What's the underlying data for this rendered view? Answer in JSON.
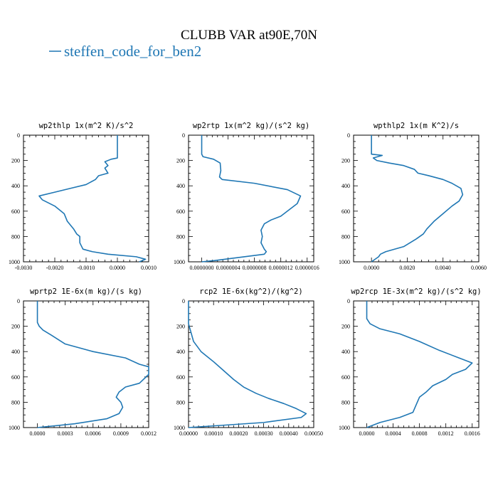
{
  "title": "CLUBB VAR at90E,70N",
  "legend": {
    "label": "steffen_code_for_ben2",
    "color": "#1f77b4"
  },
  "chart_data": [
    {
      "type": "line",
      "title": "wp2thlp  1x(m^2 K)/s^2",
      "xlim": [
        -0.003,
        0.001
      ],
      "ylim": [
        0,
        1000
      ],
      "y_inverted": true,
      "xticks": [
        -0.003,
        -0.002,
        -0.001,
        0.0,
        0.001
      ],
      "xtick_labels": [
        "-0.0030",
        "-0.0020",
        "-0.0010",
        "0.0000",
        "0.0010"
      ],
      "yticks": [
        0,
        200,
        400,
        600,
        800,
        1000
      ],
      "ytick_labels": [
        "0",
        "200",
        "400",
        "600",
        "800",
        "1000"
      ],
      "series": [
        {
          "color": "#1f77b4",
          "x": [
            0.0,
            0.0,
            -0.0002,
            -0.0004,
            -0.0003,
            -0.0004,
            -0.0003,
            -0.0006,
            -0.0007,
            -0.001,
            -0.0015,
            -0.002,
            -0.0025,
            -0.0024,
            -0.002,
            -0.0017,
            -0.0016,
            -0.0014,
            -0.0013,
            -0.0012,
            -0.0012,
            -0.0011,
            -0.0008,
            -0.0003,
            0.0006,
            0.0009,
            0.0007
          ],
          "y": [
            0,
            180,
            190,
            210,
            240,
            260,
            300,
            320,
            350,
            390,
            420,
            450,
            480,
            510,
            560,
            620,
            680,
            740,
            780,
            800,
            850,
            900,
            920,
            940,
            960,
            980,
            1000
          ]
        }
      ]
    },
    {
      "type": "line",
      "title": "wp2rtp  1x(m^2 kg)/(s^2 kg)",
      "xlim": [
        -2e-07,
        1.7e-06
      ],
      "ylim": [
        0,
        1000
      ],
      "y_inverted": true,
      "xticks": [
        0.0,
        4e-07,
        8e-07,
        1.2e-06,
        1.6e-06
      ],
      "xtick_labels": [
        "0.0000000",
        "0.0000004",
        "0.0000008",
        "0.0000012",
        "0.0000016"
      ],
      "yticks": [
        0,
        200,
        400,
        600,
        800,
        1000
      ],
      "ytick_labels": [
        "0",
        "200",
        "400",
        "600",
        "800",
        "1000"
      ],
      "series": [
        {
          "color": "#1f77b4",
          "x": [
            0.0,
            0.0,
            2e-08,
            1.8e-07,
            2.8e-07,
            2.9e-07,
            2.7e-07,
            3.1e-07,
            8e-07,
            1.3e-06,
            1.5e-06,
            1.45e-06,
            1.3e-06,
            1.2e-06,
            1.05e-06,
            9.5e-07,
            9e-07,
            9.2e-07,
            9e-07,
            9.5e-07,
            9.8e-07,
            9.5e-07,
            2e-07,
            0.0
          ],
          "y": [
            0,
            150,
            170,
            190,
            220,
            280,
            330,
            350,
            380,
            430,
            480,
            540,
            600,
            640,
            670,
            700,
            750,
            800,
            850,
            900,
            920,
            940,
            990,
            1000
          ]
        }
      ]
    },
    {
      "type": "line",
      "title": "wpthlp2  1x(m K^2)/s",
      "xlim": [
        -0.001,
        0.006
      ],
      "ylim": [
        0,
        1000
      ],
      "y_inverted": true,
      "xticks": [
        0.0,
        0.002,
        0.004,
        0.006
      ],
      "xtick_labels": [
        "0.0000",
        "0.0020",
        "0.0040",
        "0.0060"
      ],
      "yticks": [
        0,
        200,
        400,
        600,
        800,
        1000
      ],
      "ytick_labels": [
        "0",
        "200",
        "400",
        "600",
        "800",
        "1000"
      ],
      "series": [
        {
          "color": "#1f77b4",
          "x": [
            0.0,
            0.0,
            0.0006,
            0.0001,
            0.0003,
            0.001,
            0.0018,
            0.0024,
            0.0026,
            0.0032,
            0.004,
            0.0045,
            0.005,
            0.0051,
            0.0049,
            0.0045,
            0.004,
            0.0035,
            0.0031,
            0.0029,
            0.0025,
            0.0018,
            0.0008,
            0.0005,
            0.0004,
            0.0
          ],
          "y": [
            0,
            150,
            160,
            180,
            200,
            220,
            240,
            270,
            300,
            320,
            350,
            380,
            420,
            470,
            520,
            560,
            620,
            680,
            740,
            780,
            820,
            880,
            920,
            940,
            960,
            1000
          ]
        }
      ]
    },
    {
      "type": "line",
      "title": "wprtp2  1E-6x(m kg)/(s kg)",
      "xlim": [
        -0.00015,
        0.0012
      ],
      "ylim": [
        0,
        1000
      ],
      "y_inverted": true,
      "xticks": [
        0.0,
        0.0003,
        0.0006,
        0.0009,
        0.0012
      ],
      "xtick_labels": [
        "0.0000",
        "0.0003",
        "0.0006",
        "0.0009",
        "0.0012"
      ],
      "yticks": [
        0,
        200,
        400,
        600,
        800,
        1000
      ],
      "ytick_labels": [
        "0",
        "200",
        "400",
        "600",
        "800",
        "1000"
      ],
      "series": [
        {
          "color": "#1f77b4",
          "x": [
            0.0,
            0.0,
            2e-05,
            6e-05,
            0.00015,
            0.0003,
            0.0006,
            0.00095,
            0.0011,
            0.0012,
            0.0012,
            0.0011,
            0.00095,
            0.00088,
            0.00085,
            0.0009,
            0.00092,
            0.00088,
            0.00075,
            0.0004,
            0.0
          ],
          "y": [
            0,
            170,
            200,
            230,
            270,
            340,
            400,
            450,
            500,
            520,
            580,
            650,
            680,
            720,
            760,
            800,
            840,
            890,
            930,
            970,
            1000
          ]
        }
      ]
    },
    {
      "type": "line",
      "title": "rcp2  1E-6x(kg^2)/(kg^2)",
      "xlim": [
        0.0,
        0.0005
      ],
      "ylim": [
        0,
        1000
      ],
      "y_inverted": true,
      "xticks": [
        0.0,
        0.0001,
        0.0002,
        0.0003,
        0.0004,
        0.0005
      ],
      "xtick_labels": [
        "0.00000",
        "0.00010",
        "0.00020",
        "0.00030",
        "0.00040",
        "0.00050"
      ],
      "yticks": [
        0,
        200,
        400,
        600,
        800,
        1000
      ],
      "ytick_labels": [
        "0",
        "200",
        "400",
        "600",
        "800",
        "1000"
      ],
      "series": [
        {
          "color": "#1f77b4",
          "x": [
            0.0,
            0.0,
            1e-05,
            2e-05,
            5e-05,
            0.0001,
            0.00014,
            0.00018,
            0.00022,
            0.00027,
            0.00032,
            0.00038,
            0.00043,
            0.00047,
            0.00045,
            0.0003,
            0.0
          ],
          "y": [
            0,
            180,
            250,
            320,
            400,
            480,
            550,
            620,
            680,
            730,
            770,
            810,
            850,
            890,
            920,
            960,
            1000
          ]
        }
      ]
    },
    {
      "type": "line",
      "title": "wp2rcp  1E-3x(m^2 kg)/(s^2 kg)",
      "xlim": [
        -0.0002,
        0.0017
      ],
      "ylim": [
        0,
        1000
      ],
      "y_inverted": true,
      "xticks": [
        0.0,
        0.0004,
        0.0008,
        0.0012,
        0.0016
      ],
      "xtick_labels": [
        "0.0000",
        "0.0004",
        "0.0008",
        "0.0012",
        "0.0016"
      ],
      "yticks": [
        0,
        200,
        400,
        600,
        800,
        1000
      ],
      "ytick_labels": [
        "0",
        "200",
        "400",
        "600",
        "800",
        "1000"
      ],
      "series": [
        {
          "color": "#1f77b4",
          "x": [
            0.0,
            0.0,
            5e-05,
            0.0002,
            0.0005,
            0.0008,
            0.0011,
            0.0014,
            0.0016,
            0.0015,
            0.0013,
            0.0012,
            0.001,
            0.0009,
            0.0008,
            0.00075,
            0.0007,
            0.0005,
            0.0002,
            0.0
          ],
          "y": [
            0,
            140,
            180,
            220,
            260,
            320,
            390,
            450,
            490,
            540,
            580,
            620,
            670,
            720,
            760,
            820,
            880,
            920,
            960,
            1000
          ]
        }
      ]
    }
  ]
}
